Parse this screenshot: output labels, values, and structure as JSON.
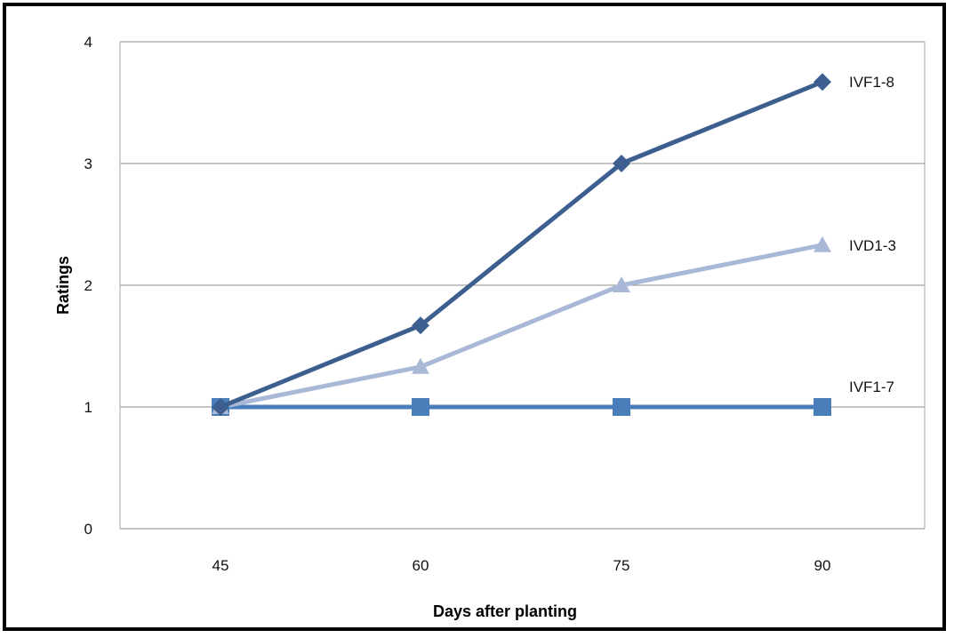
{
  "chart_data": {
    "type": "line",
    "title": "",
    "xlabel": "Days after planting",
    "ylabel": "Ratings",
    "categories": [
      "45",
      "60",
      "75",
      "90"
    ],
    "x": [
      45,
      60,
      75,
      90
    ],
    "ylim": [
      0,
      4
    ],
    "yticks": [
      "0",
      "1",
      "2",
      "3",
      "4"
    ],
    "grid": "horizontal",
    "legend": "inline labels at line ends",
    "series": [
      {
        "name": "IVF1-8",
        "values": [
          1,
          1.67,
          3,
          3.67
        ],
        "color": "#3d5f8f",
        "marker": "diamond"
      },
      {
        "name": "IVD1-3",
        "values": [
          1,
          1.33,
          2,
          2.33
        ],
        "color": "#a9b8d6",
        "marker": "triangle"
      },
      {
        "name": "IVF1-7",
        "values": [
          1,
          1,
          1,
          1
        ],
        "color": "#4a7ebb",
        "marker": "square"
      }
    ]
  }
}
